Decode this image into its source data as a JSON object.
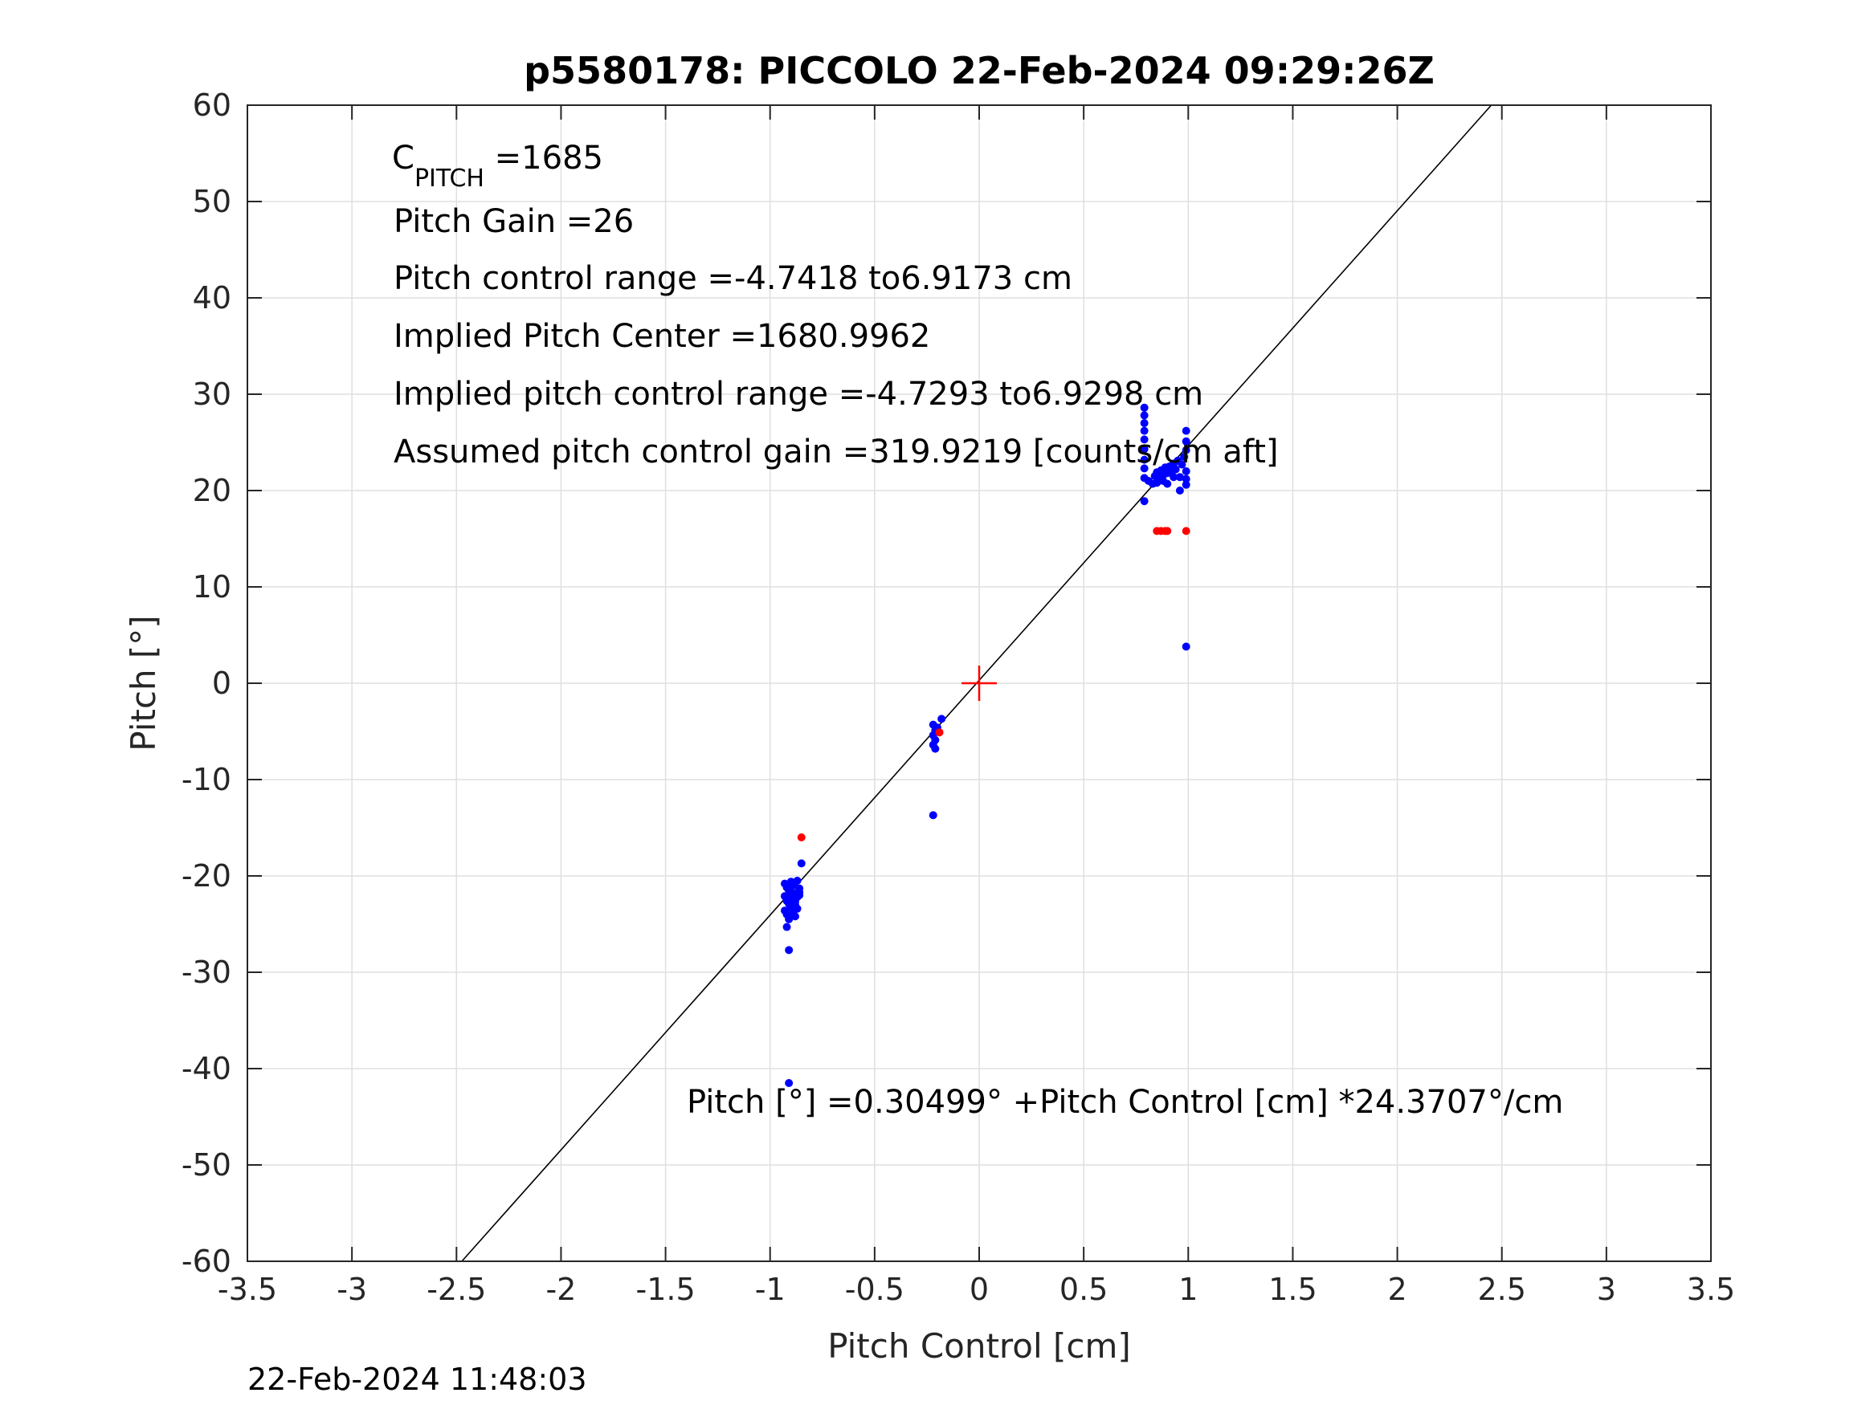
{
  "chart_data": {
    "type": "scatter",
    "title": "p5580178: PICCOLO 22-Feb-2024 09:29:26Z",
    "xlabel": "Pitch Control [cm]",
    "ylabel": "Pitch [°]",
    "xlim": [
      -3.5,
      3.5
    ],
    "ylim": [
      -60,
      60
    ],
    "xticks": [
      -3.5,
      -3,
      -2.5,
      -2,
      -1.5,
      -1,
      -0.5,
      0,
      0.5,
      1,
      1.5,
      2,
      2.5,
      3,
      3.5
    ],
    "xtick_labels": [
      "-3.5",
      "-3",
      "-2.5",
      "-2",
      "-1.5",
      "-1",
      "-0.5",
      "0",
      "0.5",
      "1",
      "1.5",
      "2",
      "2.5",
      "3",
      "3.5"
    ],
    "yticks": [
      -60,
      -50,
      -40,
      -30,
      -20,
      -10,
      0,
      10,
      20,
      30,
      40,
      50,
      60
    ],
    "ytick_labels": [
      "-60",
      "-50",
      "-40",
      "-30",
      "-20",
      "-10",
      "0",
      "10",
      "20",
      "30",
      "40",
      "50",
      "60"
    ],
    "grid": true,
    "annotations": {
      "cpitch_main": "C",
      "cpitch_sub": "PITCH",
      "cpitch_value": " =1685",
      "pitch_gain": "Pitch Gain =26",
      "pitch_control_range": "Pitch control range =-4.7418 to6.9173 cm",
      "implied_center": "Implied Pitch Center =1680.9962",
      "implied_range": "Implied pitch control range =-4.7293 to6.9298 cm",
      "assumed_gain": "Assumed pitch control gain =319.9219 [counts/cm aft]",
      "fit_equation": "Pitch [°] =0.30499° +Pitch Control [cm] *24.3707°/cm"
    },
    "fit_line": {
      "intercept": 0.30499,
      "slope": 24.3707,
      "color": "#000000"
    },
    "center_marker": {
      "x": 0,
      "y": 0,
      "color": "#ff0000"
    },
    "series": [
      {
        "color": "#0000ff",
        "points": [
          [
            -0.93,
            -20.8
          ],
          [
            -0.92,
            -21.2
          ],
          [
            -0.91,
            -21.5
          ],
          [
            -0.9,
            -20.6
          ],
          [
            -0.89,
            -21.0
          ],
          [
            -0.88,
            -21.8
          ],
          [
            -0.87,
            -20.5
          ],
          [
            -0.86,
            -21.3
          ],
          [
            -0.93,
            -22.1
          ],
          [
            -0.92,
            -22.6
          ],
          [
            -0.91,
            -22.9
          ],
          [
            -0.9,
            -23.3
          ],
          [
            -0.89,
            -22.4
          ],
          [
            -0.88,
            -23.0
          ],
          [
            -0.87,
            -22.2
          ],
          [
            -0.93,
            -23.6
          ],
          [
            -0.92,
            -24.0
          ],
          [
            -0.91,
            -24.5
          ],
          [
            -0.89,
            -23.8
          ],
          [
            -0.88,
            -24.2
          ],
          [
            -0.87,
            -23.4
          ],
          [
            -0.86,
            -22.0
          ],
          [
            -0.85,
            -18.7
          ],
          [
            -0.92,
            -25.3
          ],
          [
            -0.91,
            -27.7
          ],
          [
            -0.91,
            -41.5
          ],
          [
            -0.9,
            -21.9
          ],
          [
            -0.89,
            -20.9
          ],
          [
            -0.88,
            -22.7
          ],
          [
            -0.86,
            -21.7
          ],
          [
            -0.22,
            -4.3
          ],
          [
            -0.21,
            -4.9
          ],
          [
            -0.22,
            -5.4
          ],
          [
            -0.21,
            -5.9
          ],
          [
            -0.22,
            -6.4
          ],
          [
            -0.21,
            -6.8
          ],
          [
            -0.18,
            -3.7
          ],
          [
            -0.2,
            -4.6
          ],
          [
            -0.22,
            -13.7
          ],
          [
            0.79,
            28.6
          ],
          [
            0.79,
            27.8
          ],
          [
            0.79,
            27.0
          ],
          [
            0.79,
            26.2
          ],
          [
            0.79,
            25.3
          ],
          [
            0.79,
            24.3
          ],
          [
            0.79,
            23.2
          ],
          [
            0.79,
            22.3
          ],
          [
            0.79,
            21.3
          ],
          [
            0.79,
            18.9
          ],
          [
            0.81,
            21.0
          ],
          [
            0.83,
            20.7
          ],
          [
            0.84,
            21.5
          ],
          [
            0.85,
            21.9
          ],
          [
            0.86,
            21.2
          ],
          [
            0.87,
            22.1
          ],
          [
            0.88,
            21.6
          ],
          [
            0.89,
            22.4
          ],
          [
            0.9,
            21.8
          ],
          [
            0.91,
            22.5
          ],
          [
            0.92,
            21.9
          ],
          [
            0.93,
            22.8
          ],
          [
            0.94,
            22.2
          ],
          [
            0.95,
            23.1
          ],
          [
            0.96,
            21.4
          ],
          [
            0.96,
            20.0
          ],
          [
            0.97,
            22.7
          ],
          [
            0.98,
            23.5
          ],
          [
            0.99,
            24.2
          ],
          [
            0.99,
            25.1
          ],
          [
            0.99,
            26.2
          ],
          [
            0.99,
            22.0
          ],
          [
            0.99,
            21.2
          ],
          [
            0.99,
            20.6
          ],
          [
            0.85,
            20.8
          ],
          [
            0.88,
            21.0
          ],
          [
            0.9,
            20.7
          ],
          [
            0.93,
            21.4
          ],
          [
            0.99,
            3.8
          ]
        ]
      },
      {
        "color": "#ff0000",
        "points": [
          [
            -0.85,
            -16.0
          ],
          [
            -0.19,
            -5.1
          ],
          [
            0.85,
            15.8
          ],
          [
            0.87,
            15.8
          ],
          [
            0.89,
            15.8
          ],
          [
            0.9,
            15.8
          ],
          [
            0.99,
            15.8
          ]
        ]
      }
    ],
    "footer": "22-Feb-2024 11:48:03"
  }
}
